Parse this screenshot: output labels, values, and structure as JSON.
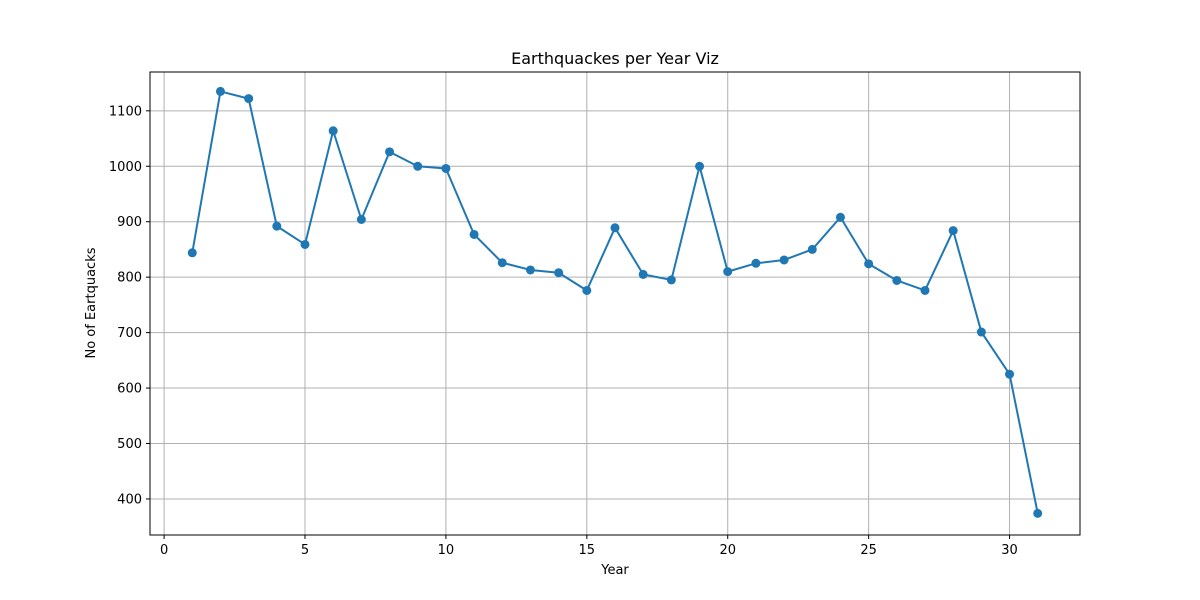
{
  "chart_data": {
    "type": "line",
    "title": "Earthquackes per Year Viz",
    "xlabel": "Year",
    "ylabel": "No of Eartquacks",
    "xlim": [
      -0.5,
      32.5
    ],
    "ylim": [
      335,
      1170
    ],
    "x_ticks": [
      0,
      5,
      10,
      15,
      20,
      25,
      30
    ],
    "y_ticks": [
      400,
      500,
      600,
      700,
      800,
      900,
      1000,
      1100
    ],
    "grid": true,
    "marker": "circle",
    "color": "#1f77b4",
    "x": [
      1,
      2,
      3,
      4,
      5,
      6,
      7,
      8,
      9,
      10,
      11,
      12,
      13,
      14,
      15,
      16,
      17,
      18,
      19,
      20,
      21,
      22,
      23,
      24,
      25,
      26,
      27,
      28,
      29,
      30,
      31
    ],
    "values": [
      844,
      1135,
      1122,
      892,
      859,
      1064,
      904,
      1026,
      1000,
      996,
      877,
      826,
      813,
      808,
      776,
      889,
      805,
      795,
      1000,
      810,
      825,
      831,
      850,
      908,
      824,
      794,
      776,
      884,
      701,
      625,
      374
    ]
  }
}
